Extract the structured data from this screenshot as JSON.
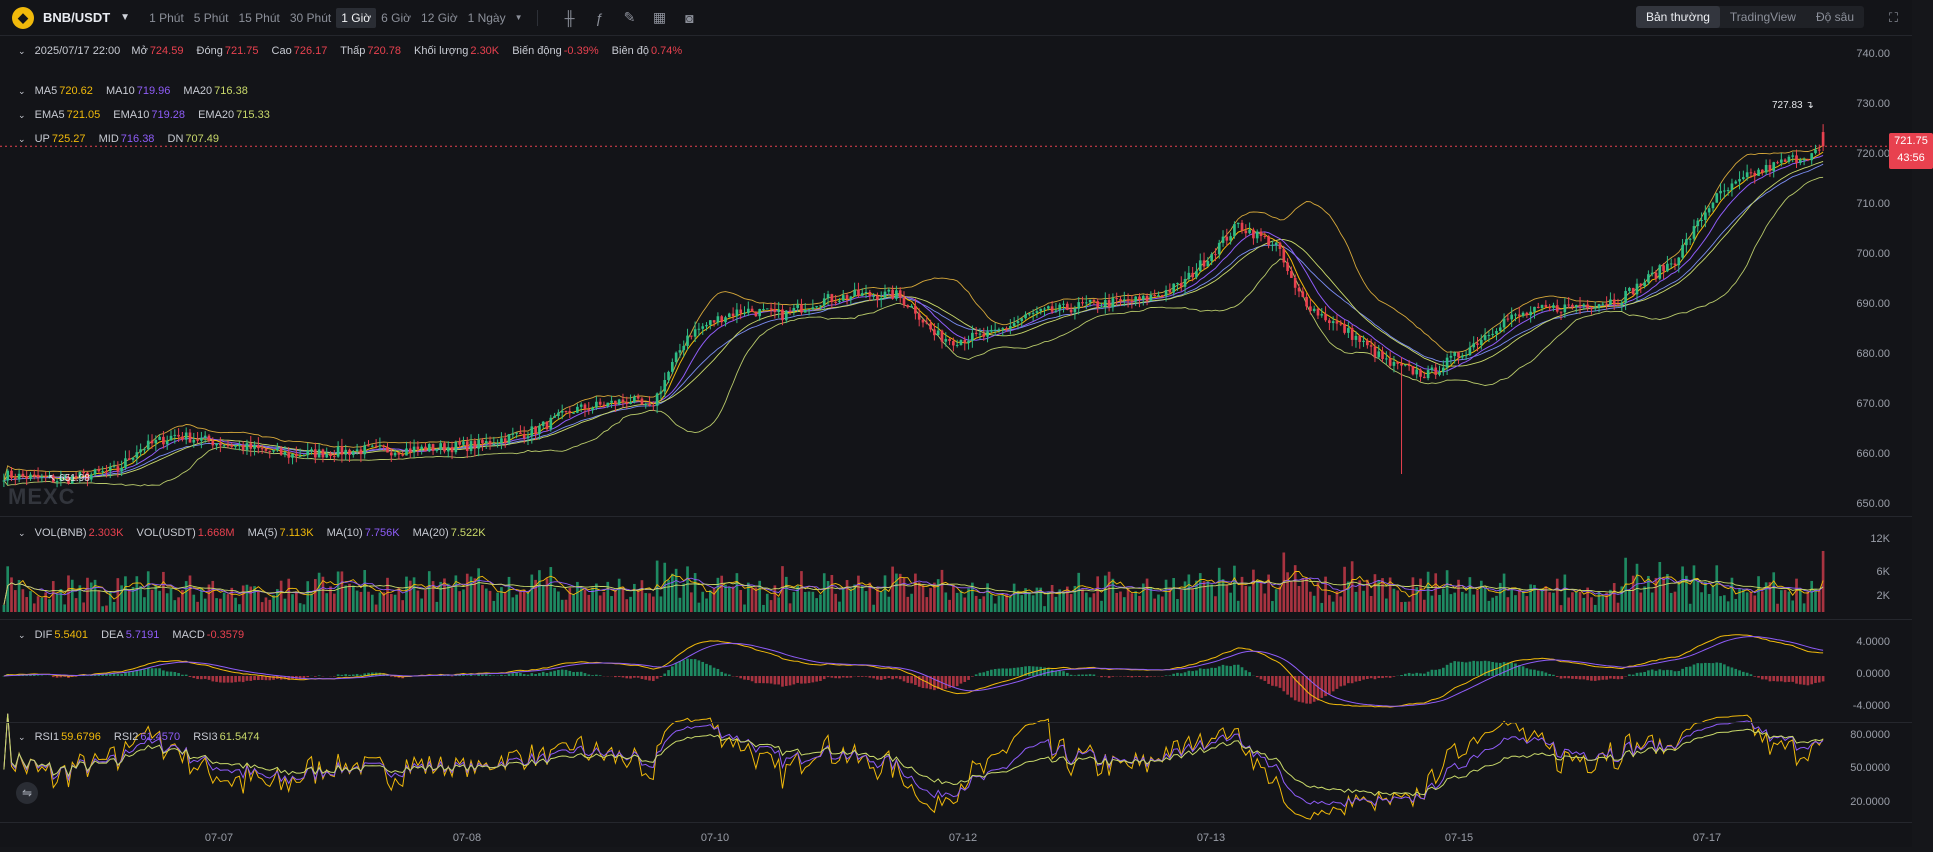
{
  "toolbar": {
    "symbol": "BNB/USDT",
    "timeframes": [
      "1 Phút",
      "5 Phút",
      "15 Phút",
      "30 Phút",
      "1 Giờ",
      "6 Giờ",
      "12 Giờ",
      "1 Ngày"
    ],
    "active_timeframe": "1 Giờ",
    "modes": [
      "Bản thường",
      "TradingView",
      "Độ sâu"
    ],
    "active_mode": "Bản thường"
  },
  "ohlc": {
    "datetime": "2025/07/17 22:00",
    "open_label": "Mở",
    "open": "724.59",
    "close_label": "Đóng",
    "close": "721.75",
    "high_label": "Cao",
    "high": "726.17",
    "low_label": "Thấp",
    "low": "720.78",
    "vol_label": "Khối lượng",
    "vol": "2.30K",
    "change_label": "Biến động",
    "change": "-0.39%",
    "amp_label": "Biên độ",
    "amp": "0.74%"
  },
  "ma": {
    "ma5_label": "MA5",
    "ma5": "720.62",
    "ma10_label": "MA10",
    "ma10": "719.96",
    "ma20_label": "MA20",
    "ma20": "716.38"
  },
  "ema": {
    "ema5_label": "EMA5",
    "ema5": "721.05",
    "ema10_label": "EMA10",
    "ema10": "719.28",
    "ema20_label": "EMA20",
    "ema20": "715.33"
  },
  "boll": {
    "up_label": "UP",
    "up": "725.27",
    "mid_label": "MID",
    "mid": "716.38",
    "dn_label": "DN",
    "dn": "707.49"
  },
  "volume": {
    "vol_bnb_label": "VOL(BNB)",
    "vol_bnb": "2.303K",
    "vol_usdt_label": "VOL(USDT)",
    "vol_usdt": "1.668M",
    "ma5_label": "MA(5)",
    "ma5": "7.113K",
    "ma10_label": "MA(10)",
    "ma10": "7.756K",
    "ma20_label": "MA(20)",
    "ma20": "7.522K"
  },
  "macd": {
    "dif_label": "DIF",
    "dif": "5.5401",
    "dea_label": "DEA",
    "dea": "5.7191",
    "macd_label": "MACD",
    "macd": "-0.3579"
  },
  "rsi": {
    "rsi1_label": "RSI1",
    "rsi1": "59.6796",
    "rsi2_label": "RSI2",
    "rsi2": "61.4570",
    "rsi3_label": "RSI3",
    "rsi3": "61.5474"
  },
  "last_price": "721.75",
  "countdown": "43:56",
  "high_marker": "727.83",
  "low_marker": "651.98",
  "watermark": "MEXC",
  "colors": {
    "up": "#2ebd85",
    "down": "#e8414f",
    "ma5": "#f0b90b",
    "ma10": "#8e5cf7",
    "ma20": "#c9d96a",
    "bg": "#131418"
  },
  "chart_data": {
    "type": "candlestick",
    "price_axis": [
      "740.00",
      "730.00",
      "720.00",
      "710.00",
      "700.00",
      "690.00",
      "680.00",
      "670.00",
      "660.00",
      "650.00"
    ],
    "price_range": [
      647,
      743
    ],
    "volume_axis": [
      "12K",
      "6K",
      "2K"
    ],
    "macd_axis": [
      "4.0000",
      "0.0000",
      "-4.0000"
    ],
    "rsi_axis": [
      "80.0000",
      "50.0000",
      "20.0000"
    ],
    "dates": [
      "07-07",
      "07-08",
      "07-10",
      "07-12",
      "07-13",
      "07-15",
      "07-17"
    ],
    "anchors": [
      [
        0,
        656
      ],
      [
        15,
        655
      ],
      [
        30,
        657
      ],
      [
        35,
        661
      ],
      [
        45,
        664
      ],
      [
        60,
        662
      ],
      [
        75,
        660
      ],
      [
        95,
        661
      ],
      [
        105,
        661
      ],
      [
        125,
        662
      ],
      [
        135,
        664
      ],
      [
        140,
        665
      ],
      [
        150,
        669
      ],
      [
        165,
        671
      ],
      [
        170,
        669
      ],
      [
        180,
        684
      ],
      [
        190,
        688
      ],
      [
        195,
        689
      ],
      [
        205,
        688
      ],
      [
        215,
        691
      ],
      [
        225,
        692
      ],
      [
        235,
        692
      ],
      [
        240,
        689
      ],
      [
        245,
        684
      ],
      [
        250,
        683
      ],
      [
        260,
        684
      ],
      [
        270,
        688
      ],
      [
        285,
        690
      ],
      [
        300,
        691
      ],
      [
        310,
        694
      ],
      [
        325,
        706
      ],
      [
        335,
        702
      ],
      [
        340,
        693
      ],
      [
        345,
        689
      ],
      [
        355,
        684
      ],
      [
        365,
        678
      ],
      [
        375,
        676
      ],
      [
        385,
        681
      ],
      [
        395,
        687
      ],
      [
        405,
        689
      ],
      [
        415,
        690
      ],
      [
        425,
        691
      ],
      [
        440,
        699
      ],
      [
        450,
        711
      ],
      [
        460,
        716
      ],
      [
        470,
        719
      ],
      [
        480,
        721
      ]
    ],
    "series": [
      {
        "name": "MA5",
        "value": 720.62
      },
      {
        "name": "MA10",
        "value": 719.96
      },
      {
        "name": "MA20",
        "value": 716.38
      }
    ]
  }
}
